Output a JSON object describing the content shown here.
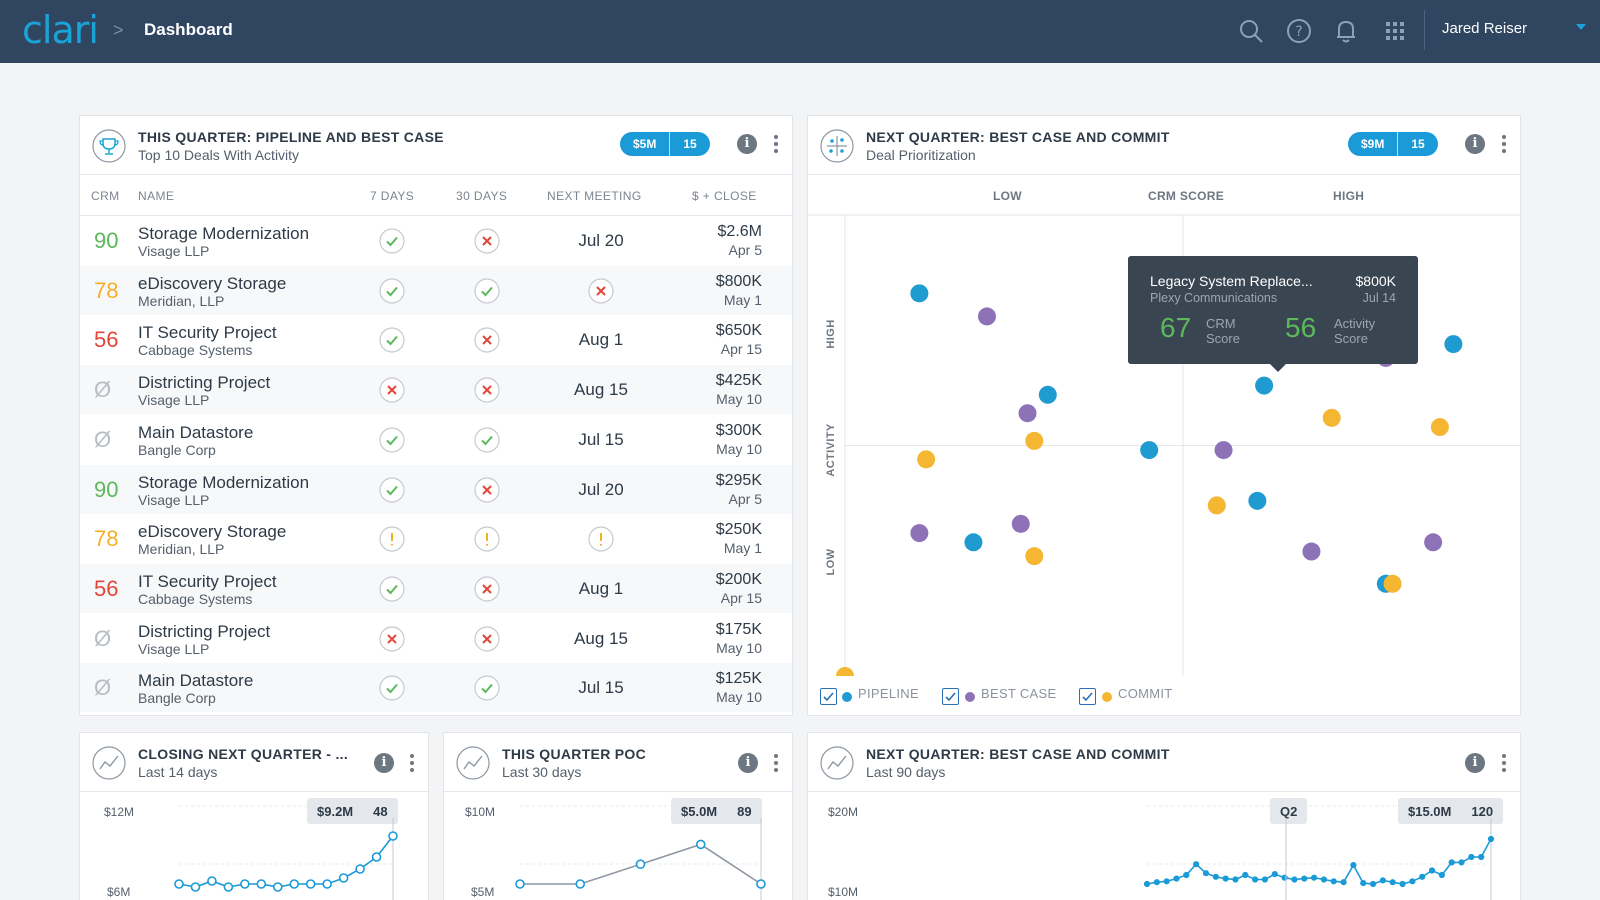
{
  "header": {
    "logo": "clari",
    "breadcrumb_sep": ">",
    "breadcrumb": "Dashboard",
    "user": "Jared Reiser",
    "icons": [
      "search-icon",
      "help-icon",
      "bell-icon",
      "apps-grid-icon",
      "chevron-down-icon"
    ]
  },
  "deals_panel": {
    "title": "THIS QUARTER: PIPELINE AND BEST CASE",
    "subtitle": "Top 10 Deals With Activity",
    "pill_amount": "$5M",
    "pill_count": "15",
    "columns": [
      "CRM",
      "NAME",
      "7 DAYS",
      "30 DAYS",
      "NEXT MEETING",
      "$ + CLOSE"
    ],
    "rows": [
      {
        "crm": "90",
        "crm_color": "#5cb85c",
        "name": "Storage Modernization",
        "company": "Visage LLP",
        "d7": "check",
        "d30": "x",
        "meeting": "Jul 20",
        "meeting_icon": "",
        "amount": "$2.6M",
        "close": "Apr 5"
      },
      {
        "crm": "78",
        "crm_color": "#f5b027",
        "name": "eDiscovery Storage",
        "company": "Meridian, LLP",
        "d7": "check",
        "d30": "check",
        "meeting": "",
        "meeting_icon": "x",
        "amount": "$800K",
        "close": "May 1"
      },
      {
        "crm": "56",
        "crm_color": "#e2463a",
        "name": "IT Security Project",
        "company": "Cabbage Systems",
        "d7": "check",
        "d30": "x",
        "meeting": "Aug 1",
        "meeting_icon": "",
        "amount": "$650K",
        "close": "Apr 15"
      },
      {
        "crm": "Ø",
        "crm_color": "#b8bec5",
        "name": "Districting Project",
        "company": "Visage LLP",
        "d7": "x",
        "d30": "x",
        "meeting": "Aug 15",
        "meeting_icon": "",
        "amount": "$425K",
        "close": "May 10"
      },
      {
        "crm": "Ø",
        "crm_color": "#b8bec5",
        "name": "Main Datastore",
        "company": "Bangle Corp",
        "d7": "check",
        "d30": "check",
        "meeting": "Jul 15",
        "meeting_icon": "",
        "amount": "$300K",
        "close": "May 10"
      },
      {
        "crm": "90",
        "crm_color": "#5cb85c",
        "name": "Storage Modernization",
        "company": "Visage LLP",
        "d7": "check",
        "d30": "x",
        "meeting": "Jul 20",
        "meeting_icon": "",
        "amount": "$295K",
        "close": "Apr 5"
      },
      {
        "crm": "78",
        "crm_color": "#f5b027",
        "name": "eDiscovery Storage",
        "company": "Meridian, LLP",
        "d7": "warn",
        "d30": "warn",
        "meeting": "",
        "meeting_icon": "warn",
        "amount": "$250K",
        "close": "May 1"
      },
      {
        "crm": "56",
        "crm_color": "#e2463a",
        "name": "IT Security Project",
        "company": "Cabbage Systems",
        "d7": "check",
        "d30": "x",
        "meeting": "Aug 1",
        "meeting_icon": "",
        "amount": "$200K",
        "close": "Apr 15"
      },
      {
        "crm": "Ø",
        "crm_color": "#b8bec5",
        "name": "Districting Project",
        "company": "Visage LLP",
        "d7": "x",
        "d30": "x",
        "meeting": "Aug 15",
        "meeting_icon": "",
        "amount": "$175K",
        "close": "May 10"
      },
      {
        "crm": "Ø",
        "crm_color": "#b8bec5",
        "name": "Main Datastore",
        "company": "Bangle Corp",
        "d7": "check",
        "d30": "check",
        "meeting": "Jul 15",
        "meeting_icon": "",
        "amount": "$125K",
        "close": "May 10"
      }
    ]
  },
  "scatter_panel": {
    "title": "NEXT QUARTER: BEST CASE AND COMMIT",
    "subtitle": "Deal Prioritization",
    "pill_amount": "$9M",
    "pill_count": "15",
    "x_low": "LOW",
    "x_title": "CRM SCORE",
    "x_high": "HIGH",
    "y_high": "HIGH",
    "y_title": "ACTIVITY",
    "y_low": "LOW",
    "tooltip": {
      "name": "Legacy System Replace...",
      "amount": "$800K",
      "company": "Plexy Communications",
      "date": "Jul 14",
      "crm_score": "67",
      "crm_label1": "CRM",
      "crm_label2": "Score",
      "activity_score": "56",
      "activity_label1": "Activity",
      "activity_label2": "Score"
    },
    "legend": [
      "PIPELINE",
      "BEST CASE",
      "COMMIT"
    ],
    "colors": {
      "pipeline": "#1f9bd1",
      "best_case": "#8e72b8",
      "commit": "#f5b731"
    }
  },
  "chart_data": [
    {
      "type": "scatter",
      "title": "NEXT QUARTER: BEST CASE AND COMMIT",
      "subtitle": "Deal Prioritization",
      "xlabel": "CRM SCORE",
      "ylabel": "ACTIVITY",
      "xlim": [
        0,
        100
      ],
      "ylim": [
        0,
        100
      ],
      "series": [
        {
          "name": "PIPELINE",
          "points": [
            [
              11,
              83
            ],
            [
              30,
              61
            ],
            [
              45,
              49
            ],
            [
              62,
              63
            ],
            [
              90,
              72
            ],
            [
              61,
              38
            ],
            [
              19,
              29
            ],
            [
              80,
              20
            ]
          ]
        },
        {
          "name": "BEST CASE",
          "points": [
            [
              21,
              78
            ],
            [
              27,
              57
            ],
            [
              11,
              31
            ],
            [
              26,
              33
            ],
            [
              56,
              49
            ],
            [
              69,
              27
            ],
            [
              80,
              69
            ],
            [
              87,
              29
            ]
          ]
        },
        {
          "name": "COMMIT",
          "points": [
            [
              12,
              47
            ],
            [
              28,
              51
            ],
            [
              28,
              26
            ],
            [
              55,
              37
            ],
            [
              72,
              56
            ],
            [
              88,
              54
            ],
            [
              81,
              20
            ],
            [
              0,
              0
            ]
          ]
        }
      ]
    },
    {
      "type": "line",
      "title": "CLOSING NEXT QUARTER - ...",
      "subtitle": "Last 14 days",
      "y_ticks": [
        "$12M",
        "$6M"
      ],
      "ylim": [
        0,
        12
      ],
      "highlight": {
        "amount": "$9.2M",
        "count": "48"
      },
      "values": [
        6.0,
        5.8,
        6.2,
        5.8,
        6.0,
        6.0,
        5.8,
        6.0,
        6.0,
        6.0,
        6.4,
        7.0,
        7.8,
        9.2
      ]
    },
    {
      "type": "line",
      "title": "THIS QUARTER POC",
      "subtitle": "Last 30 days",
      "y_ticks": [
        "$10M",
        "$5M"
      ],
      "ylim": [
        0,
        10
      ],
      "highlight": {
        "amount": "$5.0M",
        "count": "89"
      },
      "values": [
        5.0,
        5.0,
        6.1,
        7.2,
        5.0
      ]
    },
    {
      "type": "line",
      "title": "NEXT QUARTER: BEST CASE AND COMMIT",
      "subtitle": "Last 90 days",
      "y_ticks": [
        "$20M",
        "$10M"
      ],
      "ylim": [
        0,
        20
      ],
      "marker": "Q2",
      "highlight": {
        "amount": "$15.0M",
        "count": "120"
      },
      "values": [
        10.0,
        10.2,
        10.3,
        10.6,
        11.0,
        12.2,
        11.2,
        10.8,
        10.6,
        10.5,
        11.0,
        10.5,
        10.5,
        11.1,
        10.7,
        10.5,
        10.6,
        10.7,
        10.5,
        10.3,
        10.2,
        12.1,
        10.1,
        10.0,
        10.4,
        10.2,
        10.0,
        10.3,
        10.8,
        11.5,
        11.0,
        12.4,
        12.4,
        13.0,
        13.0,
        15.0
      ]
    }
  ],
  "mini_panels": [
    {
      "title": "CLOSING NEXT QUARTER - ...",
      "subtitle": "Last 14 days",
      "y_top": "$12M",
      "y_mid": "$6M",
      "tag_amount": "$9.2M",
      "tag_count": "48"
    },
    {
      "title": "THIS QUARTER POC",
      "subtitle": "Last 30 days",
      "y_top": "$10M",
      "y_mid": "$5M",
      "tag_amount": "$5.0M",
      "tag_count": "89"
    },
    {
      "title": "NEXT QUARTER: BEST CASE AND COMMIT",
      "subtitle": "Last 90 days",
      "y_top": "$20M",
      "y_mid": "$10M",
      "marker": "Q2",
      "tag_amount": "$15.0M",
      "tag_count": "120"
    }
  ]
}
